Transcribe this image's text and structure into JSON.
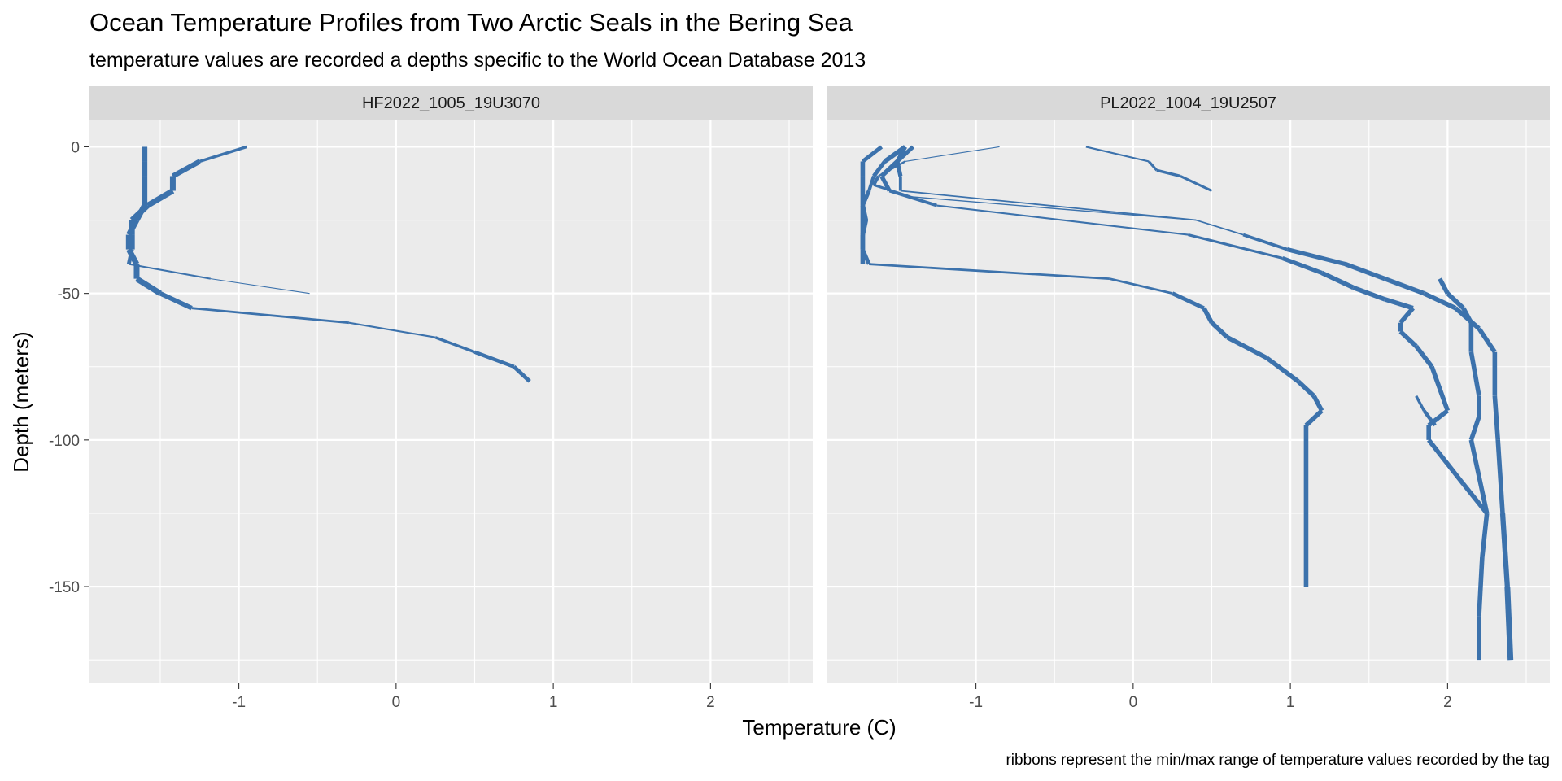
{
  "chart_data": {
    "type": "line",
    "title": "Ocean Temperature Profiles from Two Arctic Seals in the Bering Sea",
    "subtitle": "temperature values are recorded a depths specific to the World Ocean Database 2013",
    "xlabel": "Temperature (C)",
    "ylabel": "Depth (meters)",
    "caption": "ribbons represent the min/max range of temperature values recorded by the tag",
    "xlim": [
      -1.95,
      2.65
    ],
    "ylim": [
      -183,
      9
    ],
    "x_ticks": [
      -1,
      0,
      1,
      2
    ],
    "y_ticks": [
      0,
      -50,
      -100,
      -150
    ],
    "grid": true,
    "series_color": "#3c72ac",
    "panels": [
      {
        "label": "HF2022_1005_19U3070",
        "profiles": [
          {
            "points": [
              {
                "x": -1.6,
                "y": 0,
                "w": 0.05
              },
              {
                "x": -1.6,
                "y": -5,
                "w": 0.05
              },
              {
                "x": -1.6,
                "y": -10,
                "w": 0.05
              },
              {
                "x": -1.6,
                "y": -15,
                "w": 0.05
              },
              {
                "x": -1.6,
                "y": -20,
                "w": 0.05
              },
              {
                "x": -1.65,
                "y": -25,
                "w": 0.05
              },
              {
                "x": -1.7,
                "y": -30,
                "w": 0.05
              },
              {
                "x": -1.7,
                "y": -35,
                "w": 0.05
              },
              {
                "x": -1.65,
                "y": -40,
                "w": 0.05
              },
              {
                "x": -1.65,
                "y": -45,
                "w": 0.05
              }
            ]
          },
          {
            "points": [
              {
                "x": -0.95,
                "y": 0,
                "w": 0.01
              },
              {
                "x": -1.25,
                "y": -5,
                "w": 0.04
              },
              {
                "x": -1.42,
                "y": -10,
                "w": 0.05
              },
              {
                "x": -1.42,
                "y": -15,
                "w": 0.05
              },
              {
                "x": -1.58,
                "y": -20,
                "w": 0.05
              },
              {
                "x": -1.68,
                "y": -25,
                "w": 0.05
              },
              {
                "x": -1.68,
                "y": -30,
                "w": 0.05
              },
              {
                "x": -1.68,
                "y": -35,
                "w": 0.05
              },
              {
                "x": -1.7,
                "y": -40,
                "w": 0.02
              },
              {
                "x": -1.18,
                "y": -45,
                "w": 0.01
              },
              {
                "x": -0.55,
                "y": -50,
                "w": 0.005
              }
            ]
          },
          {
            "points": [
              {
                "x": -1.65,
                "y": -45,
                "w": 0.05
              },
              {
                "x": -1.5,
                "y": -50,
                "w": 0.05
              },
              {
                "x": -1.3,
                "y": -55,
                "w": 0.03
              },
              {
                "x": -0.3,
                "y": -60,
                "w": 0.01
              },
              {
                "x": 0.25,
                "y": -65,
                "w": 0.02
              },
              {
                "x": 0.5,
                "y": -70,
                "w": 0.03
              },
              {
                "x": 0.75,
                "y": -75,
                "w": 0.035
              },
              {
                "x": 0.85,
                "y": -80,
                "w": 0.035
              }
            ]
          }
        ]
      },
      {
        "label": "PL2022_1004_19U2507",
        "profiles": [
          {
            "points": [
              {
                "x": -1.6,
                "y": 0,
                "w": 0.03
              },
              {
                "x": -1.72,
                "y": -5,
                "w": 0.04
              },
              {
                "x": -1.72,
                "y": -10,
                "w": 0.04
              },
              {
                "x": -1.72,
                "y": -15,
                "w": 0.04
              },
              {
                "x": -1.72,
                "y": -20,
                "w": 0.04
              },
              {
                "x": -1.72,
                "y": -25,
                "w": 0.04
              },
              {
                "x": -1.72,
                "y": -30,
                "w": 0.04
              },
              {
                "x": -1.72,
                "y": -35,
                "w": 0.04
              },
              {
                "x": -1.68,
                "y": -40,
                "w": 0.03
              },
              {
                "x": -0.15,
                "y": -45,
                "w": 0.01
              },
              {
                "x": 0.25,
                "y": -50,
                "w": 0.03
              },
              {
                "x": 0.45,
                "y": -55,
                "w": 0.04
              },
              {
                "x": 0.5,
                "y": -60,
                "w": 0.04
              },
              {
                "x": 0.6,
                "y": -65,
                "w": 0.04
              },
              {
                "x": 0.85,
                "y": -72,
                "w": 0.04
              },
              {
                "x": 1.05,
                "y": -80,
                "w": 0.04
              },
              {
                "x": 1.15,
                "y": -85,
                "w": 0.04
              },
              {
                "x": 1.2,
                "y": -90,
                "w": 0.04
              },
              {
                "x": 1.1,
                "y": -95,
                "w": 0.04
              },
              {
                "x": 1.1,
                "y": -120,
                "w": 0.04
              },
              {
                "x": 1.1,
                "y": -150,
                "w": 0.04
              }
            ]
          },
          {
            "points": [
              {
                "x": -1.45,
                "y": 0,
                "w": 0.04
              },
              {
                "x": -1.58,
                "y": -5,
                "w": 0.04
              },
              {
                "x": -1.65,
                "y": -10,
                "w": 0.03
              },
              {
                "x": -1.68,
                "y": -15,
                "w": 0.03
              },
              {
                "x": -1.72,
                "y": -20,
                "w": 0.04
              },
              {
                "x": -1.7,
                "y": -25,
                "w": 0.04
              },
              {
                "x": -1.72,
                "y": -30,
                "w": 0.04
              },
              {
                "x": -1.72,
                "y": -35,
                "w": 0.04
              },
              {
                "x": -1.72,
                "y": -40,
                "w": 0.04
              }
            ]
          },
          {
            "points": [
              {
                "x": -1.4,
                "y": 0,
                "w": 0.03
              },
              {
                "x": -1.5,
                "y": -5,
                "w": 0.04
              },
              {
                "x": -1.48,
                "y": -10,
                "w": 0.035
              },
              {
                "x": -1.48,
                "y": -15,
                "w": 0.02
              },
              {
                "x": 0.4,
                "y": -25,
                "w": 0.005
              },
              {
                "x": 0.7,
                "y": -30,
                "w": 0.02
              },
              {
                "x": 0.98,
                "y": -35,
                "w": 0.035
              },
              {
                "x": 1.35,
                "y": -40,
                "w": 0.04
              },
              {
                "x": 1.6,
                "y": -45,
                "w": 0.04
              },
              {
                "x": 1.85,
                "y": -50,
                "w": 0.04
              },
              {
                "x": 2.05,
                "y": -55,
                "w": 0.04
              },
              {
                "x": 2.2,
                "y": -62,
                "w": 0.04
              },
              {
                "x": 2.3,
                "y": -70,
                "w": 0.04
              },
              {
                "x": 2.3,
                "y": -85,
                "w": 0.04
              },
              {
                "x": 2.32,
                "y": -100,
                "w": 0.04
              },
              {
                "x": 2.35,
                "y": -125,
                "w": 0.04
              },
              {
                "x": 2.38,
                "y": -150,
                "w": 0.05
              },
              {
                "x": 2.4,
                "y": -175,
                "w": 0.05
              }
            ]
          },
          {
            "points": [
              {
                "x": -1.45,
                "y": 0,
                "w": 0.035
              },
              {
                "x": -1.5,
                "y": -5,
                "w": 0.04
              },
              {
                "x": -1.6,
                "y": -10,
                "w": 0.04
              },
              {
                "x": -1.55,
                "y": -15,
                "w": 0.035
              },
              {
                "x": -1.25,
                "y": -20,
                "w": 0.02
              },
              {
                "x": 0.35,
                "y": -30,
                "w": 0.01
              },
              {
                "x": 0.95,
                "y": -38,
                "w": 0.035
              },
              {
                "x": 1.2,
                "y": -43,
                "w": 0.04
              },
              {
                "x": 1.4,
                "y": -48,
                "w": 0.04
              },
              {
                "x": 1.6,
                "y": -52,
                "w": 0.04
              },
              {
                "x": 1.78,
                "y": -55,
                "w": 0.04
              },
              {
                "x": 1.7,
                "y": -60,
                "w": 0.04
              },
              {
                "x": 1.7,
                "y": -63,
                "w": 0.04
              },
              {
                "x": 1.8,
                "y": -68,
                "w": 0.04
              },
              {
                "x": 1.9,
                "y": -75,
                "w": 0.04
              },
              {
                "x": 2.0,
                "y": -90,
                "w": 0.04
              },
              {
                "x": 1.88,
                "y": -95,
                "w": 0.04
              },
              {
                "x": 1.88,
                "y": -100,
                "w": 0.04
              },
              {
                "x": 2.1,
                "y": -115,
                "w": 0.04
              },
              {
                "x": 2.25,
                "y": -125,
                "w": 0.04
              },
              {
                "x": 2.22,
                "y": -140,
                "w": 0.04
              },
              {
                "x": 2.2,
                "y": -160,
                "w": 0.04
              },
              {
                "x": 2.2,
                "y": -175,
                "w": 0.04
              }
            ]
          },
          {
            "points": [
              {
                "x": -0.85,
                "y": 0,
                "w": 0.005
              },
              {
                "x": -1.45,
                "y": -5,
                "w": 0.005
              },
              {
                "x": -1.62,
                "y": -10,
                "w": 0.03
              },
              {
                "x": -1.65,
                "y": -13,
                "w": 0.03
              },
              {
                "x": -1.42,
                "y": -17,
                "w": 0.015
              },
              {
                "x": 0.4,
                "y": -25,
                "w": 0.005
              }
            ]
          },
          {
            "points": [
              {
                "x": -0.3,
                "y": 0,
                "w": 0.01
              },
              {
                "x": 0.1,
                "y": -5,
                "w": 0.02
              },
              {
                "x": 0.15,
                "y": -8,
                "w": 0.025
              },
              {
                "x": 0.3,
                "y": -10,
                "w": 0.025
              },
              {
                "x": 0.5,
                "y": -15,
                "w": 0.02
              }
            ]
          },
          {
            "points": [
              {
                "x": 1.95,
                "y": -45,
                "w": 0.04
              },
              {
                "x": 2.0,
                "y": -50,
                "w": 0.04
              },
              {
                "x": 2.1,
                "y": -55,
                "w": 0.04
              },
              {
                "x": 2.15,
                "y": -60,
                "w": 0.04
              },
              {
                "x": 2.15,
                "y": -70,
                "w": 0.04
              },
              {
                "x": 2.2,
                "y": -85,
                "w": 0.04
              },
              {
                "x": 2.2,
                "y": -92,
                "w": 0.04
              },
              {
                "x": 2.15,
                "y": -100,
                "w": 0.04
              },
              {
                "x": 2.25,
                "y": -125,
                "w": 0.04
              }
            ]
          },
          {
            "points": [
              {
                "x": 1.8,
                "y": -85,
                "w": 0.02
              },
              {
                "x": 1.85,
                "y": -90,
                "w": 0.03
              },
              {
                "x": 1.92,
                "y": -95,
                "w": 0.035
              }
            ]
          }
        ]
      }
    ]
  }
}
